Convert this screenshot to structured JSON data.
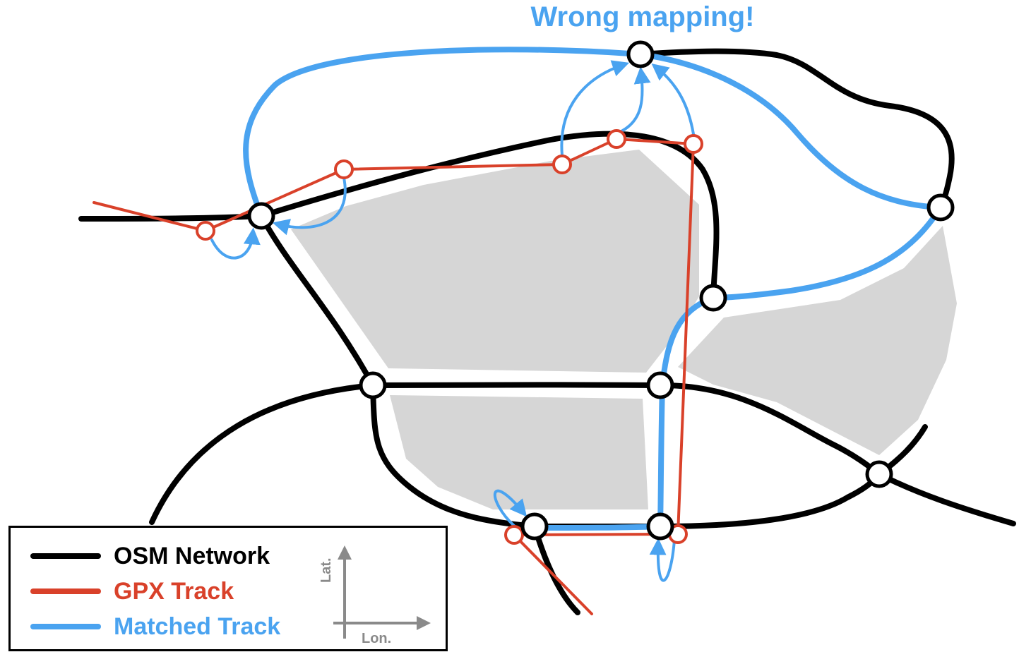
{
  "title": "Wrong mapping!",
  "legend": {
    "items": [
      {
        "label": "OSM Network",
        "color": "#000000"
      },
      {
        "label": "GPX Track",
        "color": "#d9412a"
      },
      {
        "label": "Matched Track",
        "color": "#4aa3f0"
      }
    ],
    "axes": {
      "x_label": "Lon.",
      "y_label": "Lat."
    }
  },
  "colors": {
    "network": "#000000",
    "gpx": "#d9412a",
    "matched": "#4aa3f0",
    "block_fill": "#d6d6d6"
  }
}
